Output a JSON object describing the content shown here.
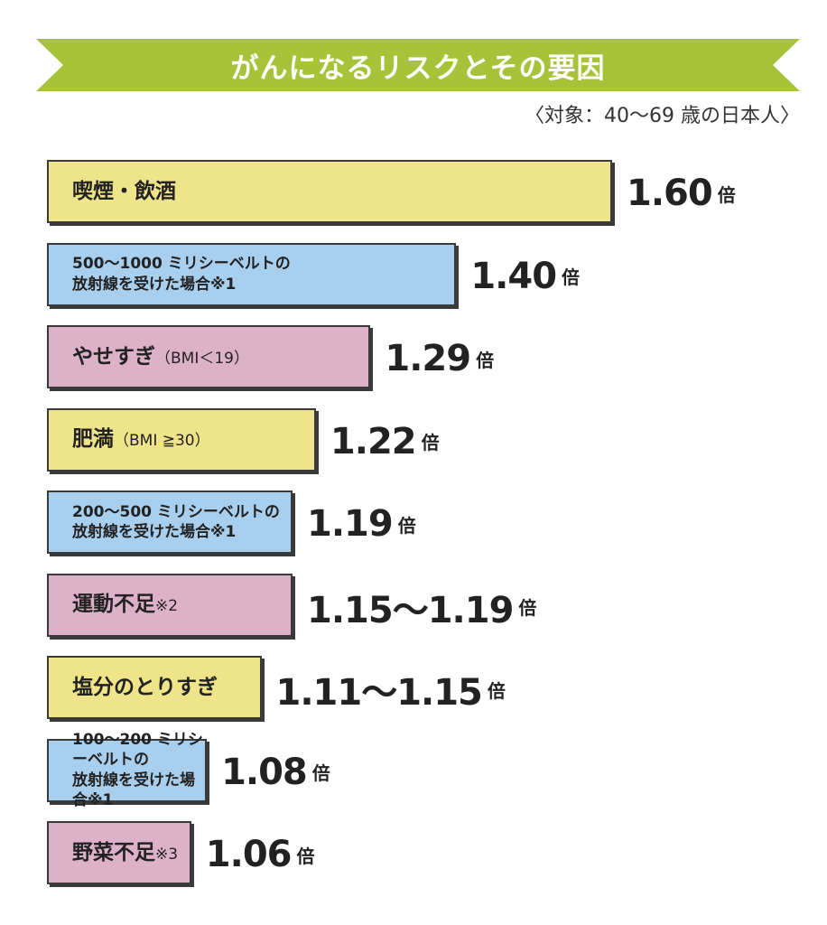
{
  "title": "がんになるリスクとその要因",
  "subtitle": "〈対象：40〜69 歳の日本人〉",
  "colors": {
    "banner": "#a8c33a",
    "yellow": "#efe48a",
    "blue": "#a9cfee",
    "pink": "#ddb2c9",
    "border": "#3a3a3a"
  },
  "unit": "倍",
  "chart_data": {
    "type": "bar",
    "orientation": "horizontal",
    "title": "がんになるリスクとその要因",
    "subtitle": "〈対象：40〜69 歳の日本人〉",
    "value_unit": "倍",
    "categories": [
      "喫煙・飲酒",
      "500〜1000 ミリシーベルトの放射線を受けた場合※1",
      "やせすぎ（BMI＜19）",
      "肥満（BMI ≧30）",
      "200〜500 ミリシーベルトの放射線を受けた場合※1",
      "運動不足※2",
      "塩分のとりすぎ",
      "100〜200 ミリシーベルトの放射線を受けた場合※1",
      "野菜不足※3"
    ],
    "values": [
      1.6,
      1.4,
      1.29,
      1.22,
      1.19,
      1.19,
      1.15,
      1.08,
      1.06
    ],
    "bars": [
      {
        "lines": [
          "喫煙・飲酒"
        ],
        "note": "",
        "value_label": "1.60",
        "value": 1.6,
        "color": "yellow",
        "size": "large"
      },
      {
        "lines": [
          "500〜1000 ミリシーベルトの",
          "放射線を受けた場合※1"
        ],
        "note": "",
        "value_label": "1.40",
        "value": 1.4,
        "color": "blue",
        "size": "small"
      },
      {
        "lines": [
          "やせすぎ"
        ],
        "note": "（BMI＜19）",
        "value_label": "1.29",
        "value": 1.29,
        "color": "pink",
        "size": "large"
      },
      {
        "lines": [
          "肥満"
        ],
        "note": "（BMI ≧30）",
        "value_label": "1.22",
        "value": 1.22,
        "color": "yellow",
        "size": "large"
      },
      {
        "lines": [
          "200〜500 ミリシーベルトの",
          "放射線を受けた場合※1"
        ],
        "note": "",
        "value_label": "1.19",
        "value": 1.19,
        "color": "blue",
        "size": "small"
      },
      {
        "lines": [
          "運動不足"
        ],
        "note": "※2",
        "value_label": "1.15〜1.19",
        "value": 1.19,
        "color": "pink",
        "size": "large"
      },
      {
        "lines": [
          "塩分のとりすぎ"
        ],
        "note": "",
        "value_label": "1.11〜1.15",
        "value": 1.15,
        "color": "yellow",
        "size": "large"
      },
      {
        "lines": [
          "100〜200 ミリシーベルトの",
          "放射線を受けた場合※1"
        ],
        "note": "",
        "value_label": "1.08",
        "value": 1.08,
        "color": "blue",
        "size": "small"
      },
      {
        "lines": [
          "野菜不足"
        ],
        "note": "※3",
        "value_label": "1.06",
        "value": 1.06,
        "color": "pink",
        "size": "large"
      }
    ]
  }
}
